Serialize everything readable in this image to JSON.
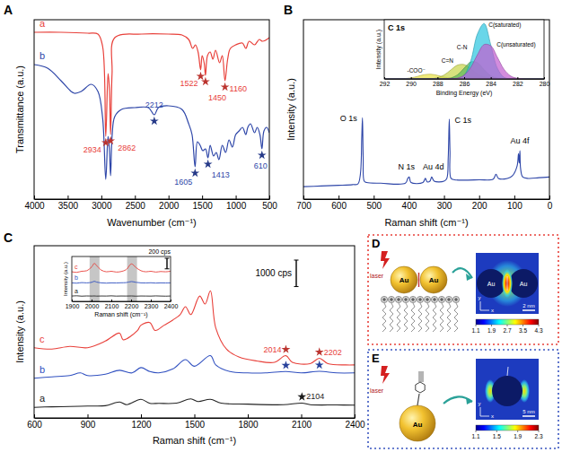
{
  "chart_data": [
    {
      "panel": "A",
      "type": "line",
      "x_label": "Wavenumber (cm⁻¹)",
      "y_label": "Transmittance (a.u.)",
      "xlim": [
        4000,
        500
      ],
      "xticks": [
        4000,
        3500,
        3000,
        2500,
        2000,
        1500,
        1000,
        500
      ],
      "ylim": [
        0,
        100
      ],
      "yticks": [],
      "tick_labels": "x",
      "series": [
        {
          "name": "a",
          "color": "#e8403a",
          "x": [
            4000,
            3600,
            3200,
            3050,
            2980,
            2934,
            2900,
            2880,
            2862,
            2840,
            2800,
            2400,
            2000,
            1800,
            1700,
            1640,
            1600,
            1560,
            1522,
            1500,
            1470,
            1450,
            1420,
            1380,
            1340,
            1300,
            1240,
            1200,
            1160,
            1120,
            1080,
            1000,
            900,
            850,
            800,
            720,
            650,
            600,
            500
          ],
          "values": [
            93,
            93,
            92.5,
            92,
            85,
            35,
            70,
            62,
            36,
            70,
            90,
            92,
            92,
            91.5,
            89,
            84,
            86,
            82,
            72,
            80,
            76,
            69,
            80,
            82,
            78,
            83,
            76,
            80,
            66,
            78,
            84,
            86,
            87,
            84,
            88,
            86,
            89,
            88,
            90
          ]
        },
        {
          "name": "b",
          "color": "#2e46a8",
          "x": [
            4000,
            3800,
            3600,
            3450,
            3400,
            3300,
            3150,
            3050,
            2980,
            2934,
            2900,
            2880,
            2862,
            2840,
            2800,
            2700,
            2500,
            2300,
            2212,
            2150,
            2000,
            1800,
            1700,
            1650,
            1605,
            1570,
            1530,
            1490,
            1450,
            1413,
            1380,
            1330,
            1290,
            1250,
            1200,
            1150,
            1100,
            1050,
            1000,
            950,
            900,
            850,
            820,
            780,
            720,
            680,
            640,
            610,
            580,
            540,
            500
          ],
          "values": [
            75,
            73,
            66,
            60,
            59,
            60,
            64,
            60,
            45,
            11,
            35,
            28,
            13,
            35,
            46,
            50,
            51,
            51,
            47,
            51,
            52,
            50,
            42,
            36,
            18,
            32,
            30,
            27,
            28,
            23,
            30,
            24,
            26,
            22,
            30,
            26,
            33,
            29,
            36,
            38,
            40,
            36,
            40,
            42,
            37,
            40,
            36,
            28,
            38,
            40,
            37
          ]
        }
      ],
      "annotations": [
        {
          "series": 0,
          "x": 2934,
          "y": 35
        },
        {
          "series": 0,
          "x": 2862,
          "y": 36
        },
        {
          "series": 0,
          "x": 1522,
          "y": 72
        },
        {
          "series": 0,
          "x": 1450,
          "y": 69
        },
        {
          "series": 0,
          "x": 1160,
          "y": 66
        },
        {
          "series": 1,
          "x": 2212,
          "y": 47
        },
        {
          "series": 1,
          "x": 1605,
          "y": 18
        },
        {
          "series": 1,
          "x": 1413,
          "y": 23
        },
        {
          "series": 1,
          "x": 610,
          "y": 28
        }
      ]
    },
    {
      "panel": "B",
      "type": "line",
      "x_label": "Raman shift (cm⁻¹)",
      "y_label": "Intensity (a.u.)",
      "xlim": [
        700,
        0
      ],
      "xticks": [
        700,
        600,
        500,
        400,
        300,
        200,
        100,
        0
      ],
      "ylim": [
        0,
        130
      ],
      "yticks": [],
      "tick_labels": "x",
      "series": [
        {
          "color": "#2e46a8",
          "x": [
            700,
            650,
            600,
            560,
            545,
            538,
            534,
            532,
            530,
            527,
            520,
            480,
            410,
            403,
            399,
            394,
            360,
            353,
            348,
            340,
            335,
            328,
            300,
            292,
            288,
            285,
            283,
            280,
            270,
            200,
            160,
            152,
            145,
            120,
            105,
            92,
            88,
            86,
            84,
            82,
            76,
            60,
            30,
            0
          ],
          "values": [
            9,
            9.5,
            10,
            10.5,
            11,
            18,
            45,
            59,
            30,
            13,
            12,
            11.5,
            11.5,
            15,
            16,
            12,
            12,
            15,
            12.5,
            13,
            16,
            13,
            13,
            15,
            30,
            58,
            35,
            15,
            14,
            14,
            14.5,
            18,
            15,
            15,
            17,
            24,
            33,
            26,
            35,
            22,
            16,
            15,
            15.5,
            16
          ]
        }
      ],
      "annotations": [
        {
          "text": "O 1s",
          "x": 532,
          "y": 59
        },
        {
          "text": "N 1s",
          "x": 399,
          "y": 16
        },
        {
          "text": "Au 4d",
          "x": 335,
          "y": 16
        },
        {
          "text": "C 1s",
          "x": 285,
          "y": 58
        },
        {
          "text": "Au 4f",
          "x": 84,
          "y": 35
        }
      ]
    },
    {
      "type": "area",
      "title": "C 1s",
      "x_label": "Binding Energy (eV)",
      "y_label": "Intensity (a.u.)",
      "xlim": [
        292,
        280
      ],
      "xticks": [
        292,
        290,
        288,
        286,
        284,
        282,
        280
      ],
      "ylim": [
        0,
        100
      ],
      "yticks": [],
      "tick_labels": "x",
      "x": [
        292,
        291.5,
        291,
        290.5,
        290,
        289.5,
        289,
        288.5,
        288,
        287.5,
        287,
        286.5,
        286,
        285.5,
        285,
        284.5,
        284,
        283.5,
        283,
        282.5,
        282,
        281.5,
        281,
        280.5,
        280
      ],
      "series": [
        {
          "name": "-COO⁻",
          "color": "#e9e24a",
          "values": [
            0,
            0,
            0.1,
            0.5,
            1.7,
            4.3,
            7.1,
            7.9,
            6.0,
            3.1,
            1.1,
            0.3,
            0,
            0,
            0,
            0,
            0,
            0,
            0,
            0,
            0,
            0,
            0,
            0,
            0
          ]
        },
        {
          "name": "C=N",
          "color": "#c9d64c",
          "values": [
            0,
            0,
            0,
            0,
            0,
            0,
            0.1,
            0.4,
            2.0,
            6.7,
            15.2,
            23.3,
            24.2,
            17.1,
            8.1,
            2.6,
            0.6,
            0.1,
            0,
            0,
            0,
            0,
            0,
            0,
            0
          ]
        },
        {
          "name": "C-N",
          "color": "#5cb85c",
          "values": [
            0,
            0,
            0,
            0,
            0,
            0,
            0,
            0,
            0,
            0.2,
            1.6,
            6.9,
            18.2,
            28.8,
            27.4,
            15.6,
            5.4,
            1.1,
            0.1,
            0,
            0,
            0,
            0,
            0,
            0
          ]
        },
        {
          "name": "C(saturated)",
          "color": "#2fc6e0",
          "values": [
            0,
            0,
            0,
            0,
            0,
            0,
            0,
            0,
            0,
            0,
            0,
            0.6,
            6.3,
            30.8,
            76.1,
            93.7,
            57.6,
            17.7,
            2.7,
            0.2,
            0,
            0,
            0,
            0,
            0
          ]
        },
        {
          "name": "C(unsaturated)",
          "color": "#c25fd0",
          "values": [
            0,
            0,
            0,
            0,
            0,
            0,
            0,
            0,
            0,
            0,
            0.2,
            1.4,
            6.3,
            19.5,
            40.9,
            58.1,
            55.9,
            36.4,
            16.0,
            4.8,
            1.0,
            0.1,
            0,
            0,
            0
          ]
        }
      ]
    },
    {
      "panel": "C",
      "type": "line",
      "x_label": "Raman shift (cm⁻¹)",
      "y_label": "Intensity (a.u.)",
      "xlim": [
        600,
        2400
      ],
      "xticks": [
        600,
        900,
        1200,
        1500,
        1800,
        2100,
        2400
      ],
      "ylim": [
        0,
        6500
      ],
      "yticks": [],
      "tick_labels": "x",
      "scale_bar": {
        "value": 1000,
        "label": "1000 cps"
      },
      "series": [
        {
          "name": "a",
          "color": "#222222",
          "x": [
            600,
            700,
            800,
            900,
            1000,
            1080,
            1120,
            1200,
            1250,
            1300,
            1400,
            1480,
            1520,
            1590,
            1650,
            1800,
            2000,
            2104,
            2150,
            2300,
            2400
          ],
          "values": [
            400,
            420,
            430,
            450,
            460,
            600,
            500,
            700,
            550,
            550,
            560,
            720,
            620,
            700,
            560,
            520,
            500,
            560,
            500,
            490,
            480
          ]
        },
        {
          "name": "b",
          "color": "#3050c0",
          "x": [
            600,
            700,
            800,
            860,
            900,
            1000,
            1080,
            1150,
            1200,
            1250,
            1300,
            1380,
            1450,
            1500,
            1590,
            1620,
            1700,
            1800,
            1900,
            2014,
            2100,
            2202,
            2300,
            2400
          ],
          "values": [
            1500,
            1550,
            1600,
            1700,
            1600,
            1650,
            1800,
            1700,
            1900,
            1750,
            1700,
            1850,
            2200,
            1950,
            2350,
            2000,
            1750,
            1700,
            1700,
            1750,
            1700,
            1760,
            1700,
            1700
          ]
        },
        {
          "name": "c",
          "color": "#e8403a",
          "x": [
            600,
            700,
            800,
            900,
            1000,
            1080,
            1100,
            1180,
            1200,
            1250,
            1280,
            1330,
            1380,
            1420,
            1450,
            1480,
            1530,
            1560,
            1590,
            1620,
            1680,
            1750,
            1850,
            1950,
            2014,
            2050,
            2150,
            2202,
            2250,
            2350,
            2400
          ],
          "values": [
            2650,
            2600,
            2700,
            2650,
            2900,
            3200,
            2950,
            3300,
            3500,
            3600,
            3300,
            3500,
            3700,
            3900,
            4200,
            3900,
            4600,
            4300,
            4800,
            3400,
            2600,
            2300,
            2150,
            2100,
            2350,
            2100,
            2050,
            2250,
            2050,
            2000,
            2000
          ]
        }
      ],
      "annotations": [
        {
          "series": 2,
          "x": 2014,
          "y": 2350
        },
        {
          "series": 2,
          "x": 2202,
          "y": 2250
        },
        {
          "series": 0,
          "x": 2104,
          "y": 560
        }
      ],
      "stars": [
        {
          "series": 1,
          "x": 2014,
          "y": 1750
        },
        {
          "series": 1,
          "x": 2202,
          "y": 1760
        }
      ]
    },
    {
      "type": "line",
      "x_label": "Raman shift (cm⁻¹)",
      "y_label": "Intensity (a.u.)",
      "xlim": [
        1900,
        2400
      ],
      "xticks": [
        1900,
        2000,
        2100,
        2200,
        2300,
        2400
      ],
      "ylim": [
        0,
        850
      ],
      "yticks": [],
      "tick_labels": "x",
      "scale_bar": {
        "value": 200,
        "label": "200 cps"
      },
      "bands": [
        [
          1990,
          2040
        ],
        [
          2180,
          2230
        ]
      ],
      "x": [
        1900,
        1925,
        1950,
        1975,
        2000,
        2014,
        2025,
        2050,
        2075,
        2100,
        2125,
        2150,
        2175,
        2202,
        2225,
        2250,
        2275,
        2300,
        2325,
        2350,
        2375,
        2400
      ],
      "series": [
        {
          "name": "a",
          "color": "#222222",
          "values": [
            100,
            105,
            98,
            102,
            100,
            102,
            99,
            101,
            100,
            104,
            99,
            101,
            100,
            102,
            98,
            101,
            100,
            99,
            103,
            100,
            98,
            101
          ]
        },
        {
          "name": "b",
          "color": "#3050c0",
          "values": [
            350,
            345,
            355,
            350,
            360,
            380,
            365,
            350,
            345,
            350,
            348,
            352,
            355,
            375,
            360,
            350,
            348,
            352,
            346,
            350,
            348,
            350
          ]
        },
        {
          "name": "c",
          "color": "#e8403a",
          "values": [
            560,
            550,
            570,
            580,
            650,
            720,
            680,
            590,
            560,
            570,
            555,
            565,
            600,
            710,
            640,
            580,
            560,
            570,
            555,
            565,
            560,
            570
          ]
        }
      ]
    }
  ],
  "diagrams": [
    {
      "panel": "D",
      "laser": "laser",
      "particles": [
        "Au",
        "Au"
      ],
      "map_labels": [
        "Au",
        "Au"
      ],
      "scale_bar": "2 nm",
      "axes": [
        "y",
        "x"
      ],
      "colorbar": {
        "range": [
          1.1,
          4.3
        ],
        "ticks": [
          1.1,
          1.9,
          2.7,
          3.5,
          4.3
        ]
      }
    },
    {
      "panel": "E",
      "laser": "laser",
      "particles": [
        "Au"
      ],
      "map_labels": [],
      "scale_bar": "5 nm",
      "axes": [
        "y",
        "x"
      ],
      "colorbar": {
        "range": [
          1.1,
          2.3
        ],
        "ticks": [
          1.1,
          1.5,
          1.9,
          2.3
        ]
      }
    }
  ]
}
